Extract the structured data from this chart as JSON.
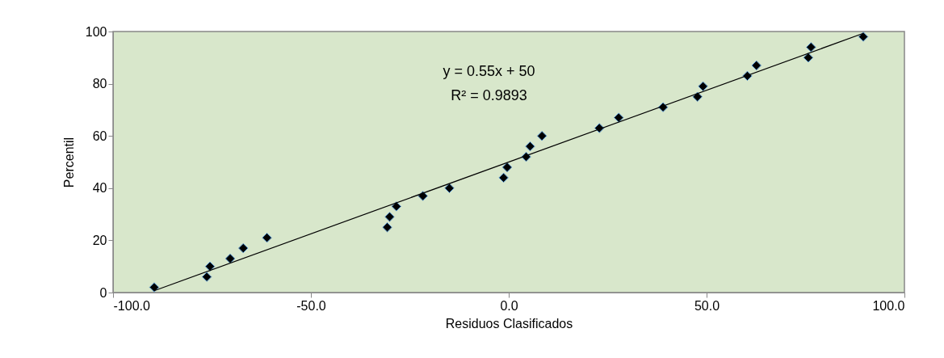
{
  "chart_data": {
    "type": "scatter",
    "xlabel": "Residuos Clasificados",
    "ylabel": "Percentil",
    "annotations": [
      "y = 0.55x + 50",
      "R² = 0.9893"
    ],
    "series": [
      {
        "color": "#000000",
        "marker": "diamond",
        "x": [
          -89.6,
          -76.3,
          -75.5,
          -70.4,
          -67.1,
          -61.1,
          -30.7,
          -30.1,
          -28.4,
          -21.7,
          -15.0,
          -1.3,
          -0.4,
          4.4,
          5.4,
          8.4,
          22.9,
          27.8,
          39.0,
          47.7,
          49.1,
          60.3,
          62.6,
          75.7,
          76.4,
          89.6
        ],
        "values": [
          2,
          6,
          10,
          13,
          17,
          21,
          25,
          29,
          33,
          37,
          40,
          44,
          48,
          52,
          56,
          60,
          63,
          67,
          71,
          75,
          79,
          83,
          87,
          90,
          94,
          98
        ]
      },
      {
        "type": "line",
        "color": "#000000",
        "marker": "none",
        "x": [
          -89.6,
          89.6
        ],
        "values": [
          0.7,
          99.3
        ]
      }
    ],
    "xlim": [
      -100,
      100
    ],
    "xticks": [
      {
        "value": -100,
        "label": "-100.0"
      },
      {
        "value": -50,
        "label": "-50.0"
      },
      {
        "value": 0,
        "label": "0.0"
      },
      {
        "value": 50,
        "label": "50.0"
      },
      {
        "value": 100,
        "label": "100.0"
      }
    ],
    "ylim": [
      0,
      100
    ],
    "yticks": [
      0,
      20,
      40,
      60,
      80,
      100
    ],
    "grid": false
  }
}
